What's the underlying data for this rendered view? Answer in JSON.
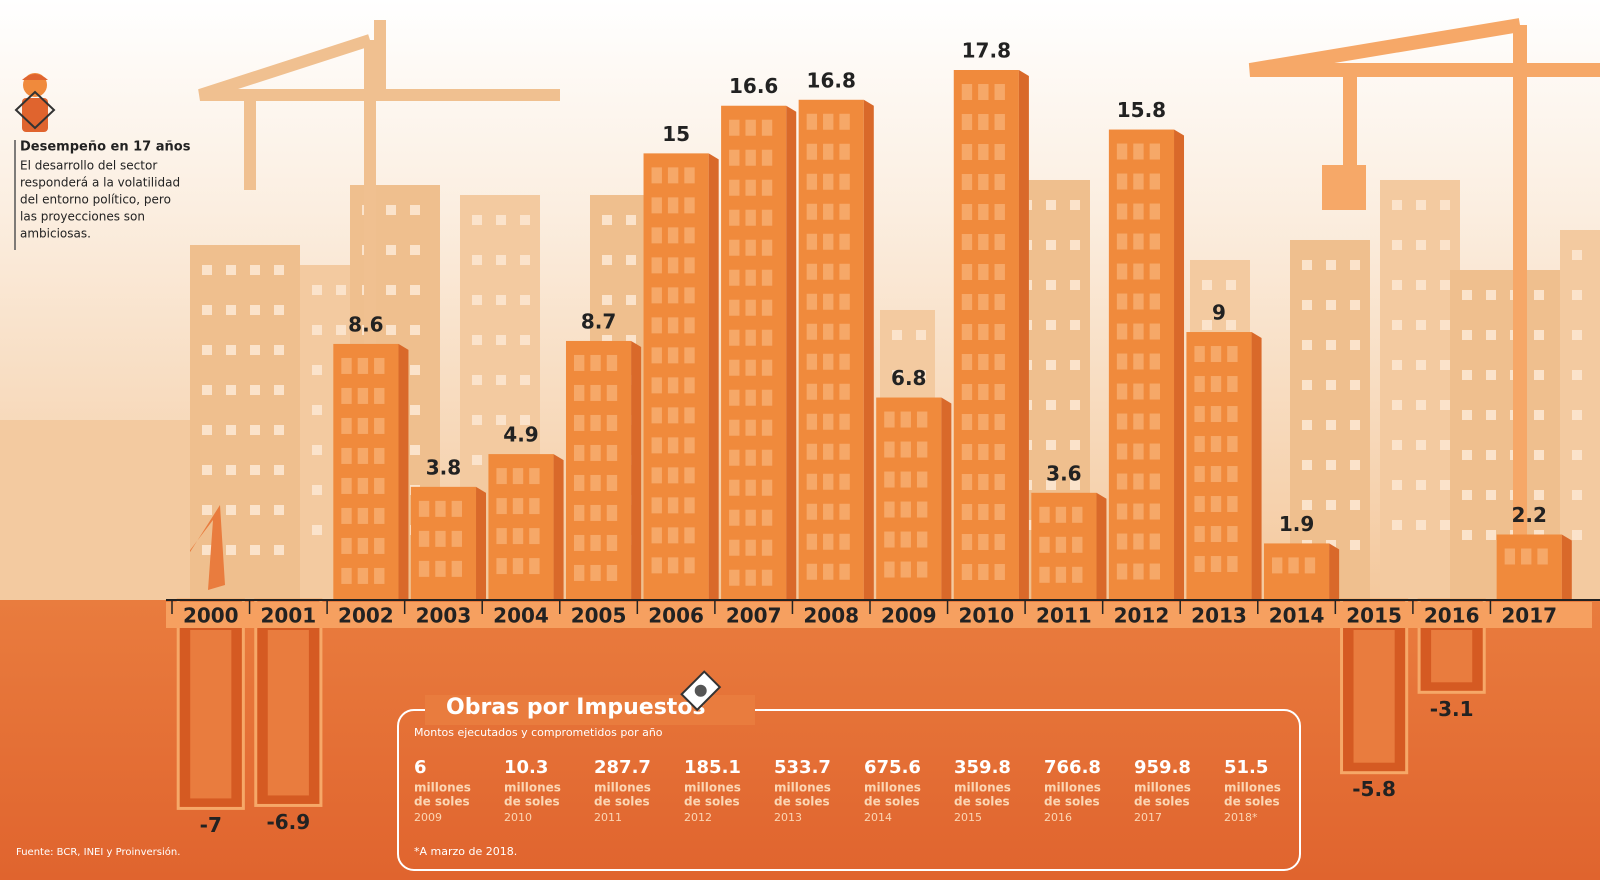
{
  "chart_data": {
    "type": "bar",
    "categories": [
      "2000",
      "2001",
      "2002",
      "2003",
      "2004",
      "2005",
      "2006",
      "2007",
      "2008",
      "2009",
      "2010",
      "2011",
      "2012",
      "2013",
      "2014",
      "2015",
      "2016",
      "2017"
    ],
    "values": [
      -7,
      -6.9,
      8.6,
      3.8,
      4.9,
      8.7,
      15,
      16.6,
      16.8,
      6.8,
      17.8,
      3.6,
      15.8,
      9,
      1.9,
      -5.8,
      -3.1,
      2.2
    ],
    "color": "#f08a3c"
  },
  "annotation": {
    "title": "Desempeño en 17 años",
    "lines": [
      "El desarrollo del sector",
      "responderá a la volatilidad",
      "del entorno político, pero",
      "las proyecciones son",
      "ambiciosas."
    ]
  },
  "inset": {
    "title": "Obras por Impuestos",
    "subtitle": "Montos ejecutados y comprometidos por año",
    "unit_lines": [
      "millones",
      "de soles"
    ],
    "items": [
      {
        "value": 6,
        "year": "2009"
      },
      {
        "value": 10.3,
        "year": "2010"
      },
      {
        "value": 287.7,
        "year": "2011"
      },
      {
        "value": 185.1,
        "year": "2012"
      },
      {
        "value": 533.7,
        "year": "2013"
      },
      {
        "value": 675.6,
        "year": "2014"
      },
      {
        "value": 359.8,
        "year": "2015"
      },
      {
        "value": 766.8,
        "year": "2016"
      },
      {
        "value": 959.8,
        "year": "2017"
      },
      {
        "value": 51.5,
        "year": "2018*"
      }
    ],
    "note": "*A marzo de 2018."
  },
  "source": "Fuente: BCR, INEI y Proinversión."
}
